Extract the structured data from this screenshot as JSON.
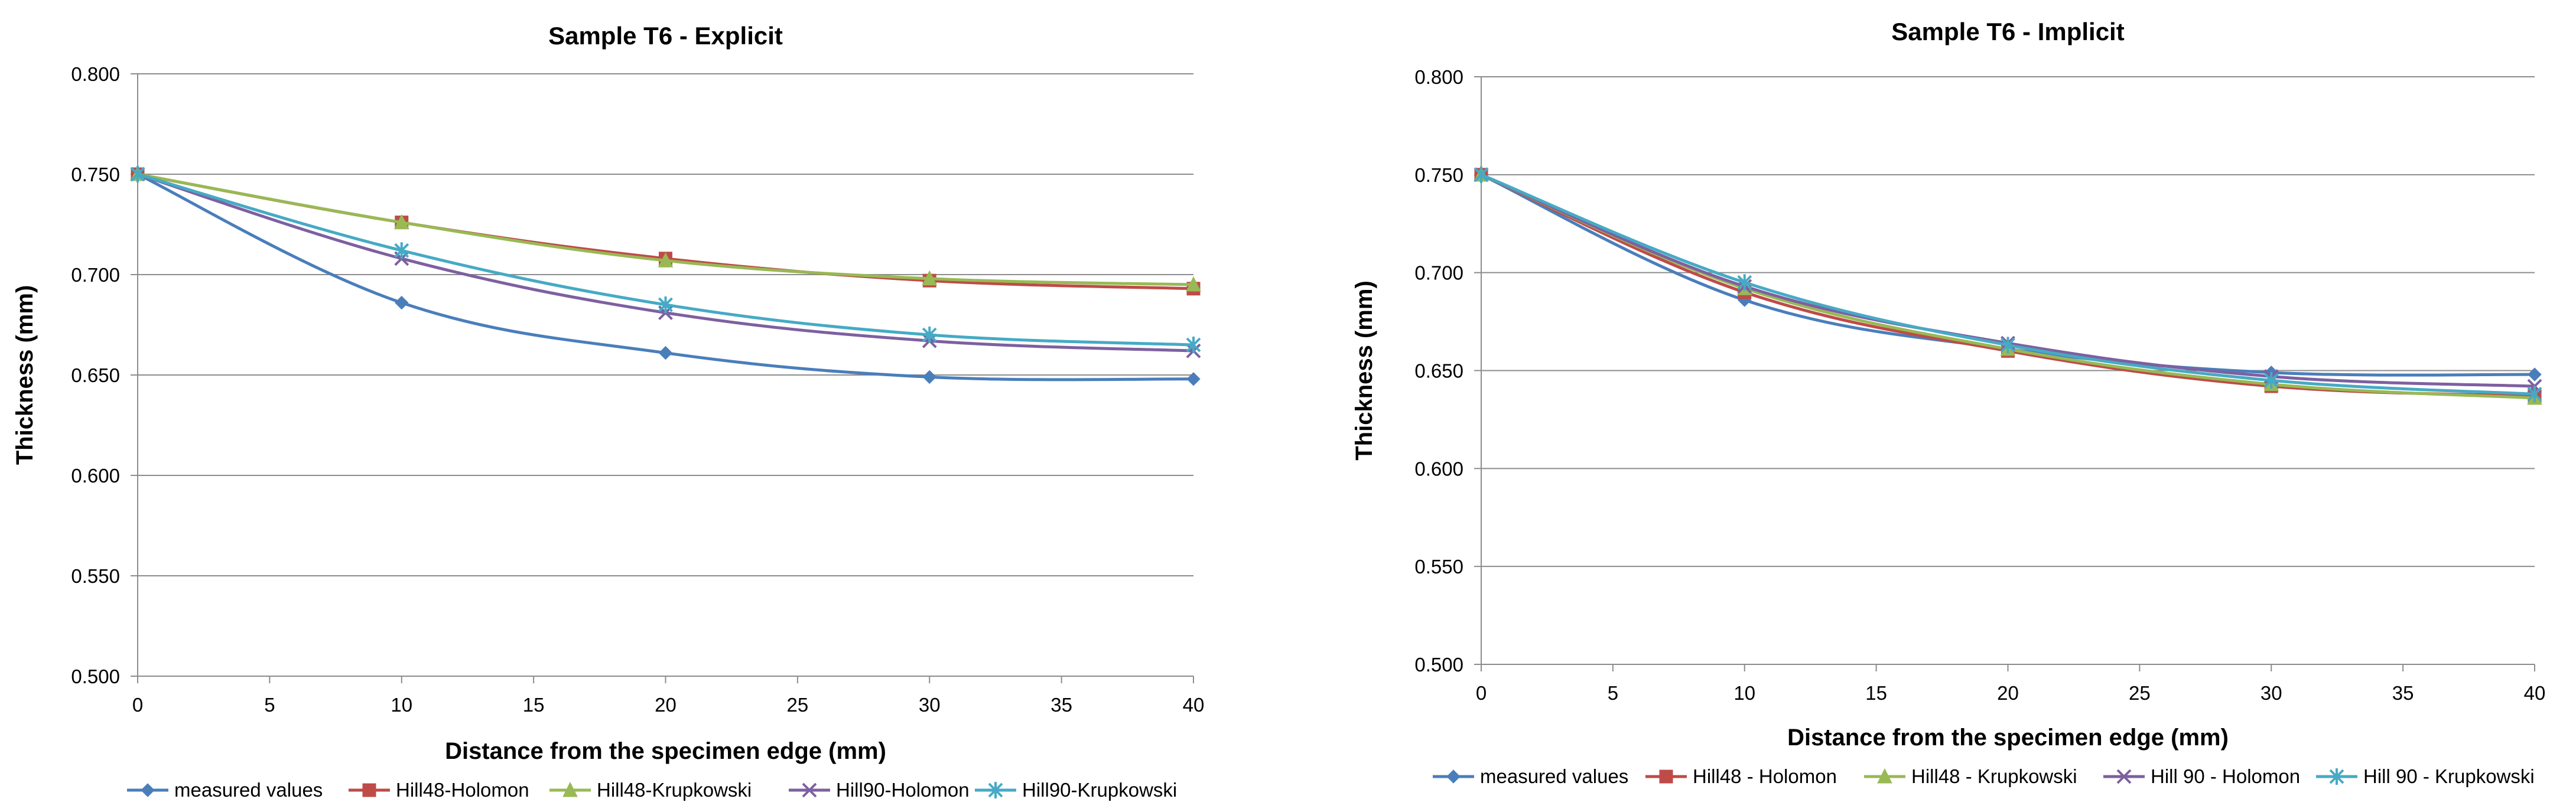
{
  "chart_data": [
    {
      "type": "line",
      "title": "Sample T6 - Explicit",
      "xlabel": "Distance from the specimen edge  (mm)",
      "ylabel": "Thickness  (mm)",
      "xlim": [
        0,
        40
      ],
      "ylim": [
        0.5,
        0.8
      ],
      "xticks": [
        "0",
        "5",
        "10",
        "15",
        "20",
        "25",
        "30",
        "35",
        "40"
      ],
      "yticks": [
        "0.500",
        "0.550",
        "0.600",
        "0.650",
        "0.700",
        "0.750",
        "0.800"
      ],
      "grid": true,
      "legend_position": "bottom",
      "x": [
        0,
        10,
        20,
        30,
        40
      ],
      "series": [
        {
          "name": "measured values",
          "values": [
            0.75,
            0.686,
            0.661,
            0.649,
            0.648
          ],
          "color": "#4A7EBB",
          "marker": "diamond"
        },
        {
          "name": "Hill48-Holomon",
          "values": [
            0.75,
            0.726,
            0.708,
            0.697,
            0.693
          ],
          "color": "#BE4B48",
          "marker": "square"
        },
        {
          "name": "Hill48-Krupkowski",
          "values": [
            0.75,
            0.726,
            0.707,
            0.698,
            0.695
          ],
          "color": "#98B954",
          "marker": "triangle"
        },
        {
          "name": "Hill90-Holomon",
          "values": [
            0.75,
            0.708,
            0.681,
            0.667,
            0.662
          ],
          "color": "#7D60A0",
          "marker": "x"
        },
        {
          "name": "Hill90-Krupkowski",
          "values": [
            0.75,
            0.712,
            0.685,
            0.67,
            0.665
          ],
          "color": "#46AAC5",
          "marker": "star"
        }
      ]
    },
    {
      "type": "line",
      "title": "Sample T6 - Implicit",
      "xlabel": "Distance from the specimen edge  (mm)",
      "ylabel": "Thickness  (mm)",
      "xlim": [
        0,
        40
      ],
      "ylim": [
        0.5,
        0.8
      ],
      "xticks": [
        "0",
        "5",
        "10",
        "15",
        "20",
        "25",
        "30",
        "35",
        "40"
      ],
      "yticks": [
        "0.500",
        "0.550",
        "0.600",
        "0.650",
        "0.700",
        "0.750",
        "0.800"
      ],
      "grid": true,
      "legend_position": "bottom",
      "x": [
        0,
        10,
        20,
        30,
        40
      ],
      "series": [
        {
          "name": "measured values",
          "values": [
            0.75,
            0.686,
            0.661,
            0.649,
            0.648
          ],
          "color": "#4A7EBB",
          "marker": "diamond"
        },
        {
          "name": "Hill48 - Holomon",
          "values": [
            0.75,
            0.69,
            0.66,
            0.642,
            0.637
          ],
          "color": "#BE4B48",
          "marker": "square"
        },
        {
          "name": "Hill48 - Krupkowski",
          "values": [
            0.75,
            0.692,
            0.661,
            0.643,
            0.636
          ],
          "color": "#98B954",
          "marker": "triangle"
        },
        {
          "name": "Hill 90 - Holomon",
          "values": [
            0.75,
            0.693,
            0.664,
            0.647,
            0.642
          ],
          "color": "#7D60A0",
          "marker": "x"
        },
        {
          "name": "Hill 90 - Krupkowski",
          "values": [
            0.75,
            0.695,
            0.663,
            0.645,
            0.638
          ],
          "color": "#46AAC5",
          "marker": "star"
        }
      ]
    }
  ]
}
